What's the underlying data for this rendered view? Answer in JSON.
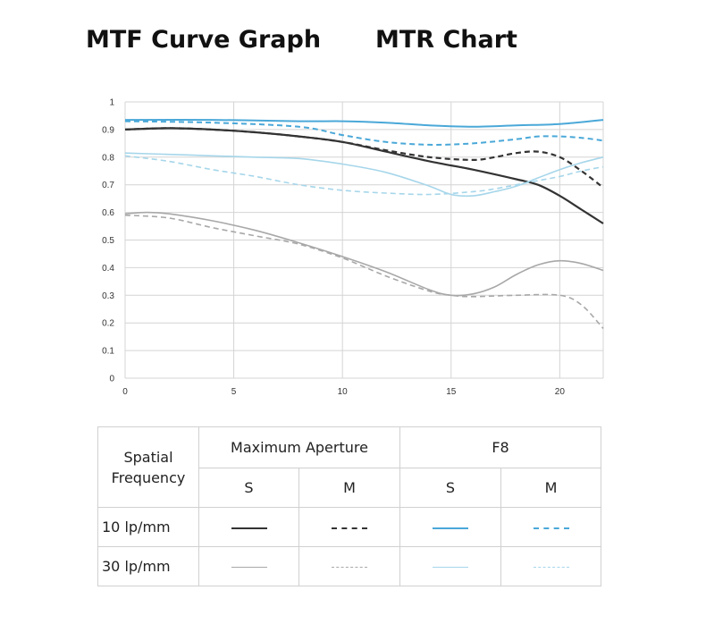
{
  "titles": {
    "left": "MTF Curve Graph",
    "right": "MTR Chart"
  },
  "colors": {
    "max_s_10": "#333333",
    "max_m_10": "#333333",
    "f8_s_10": "#4aa8d8",
    "f8_m_10": "#4aa8d8",
    "max_s_30": "#a8a8a8",
    "max_m_30": "#a8a8a8",
    "f8_s_30": "#a6d6ea",
    "f8_m_30": "#a6d6ea",
    "grid": "#d4d4d4"
  },
  "chart_data": {
    "type": "line",
    "xlim": [
      0,
      22
    ],
    "ylim": [
      0,
      1
    ],
    "x_ticks": [
      "0",
      "5",
      "10",
      "15",
      "20"
    ],
    "y_ticks": [
      "0",
      "0.1",
      "0.2",
      "0.3",
      "0.4",
      "0.5",
      "0.6",
      "0.7",
      "0.8",
      "0.9",
      "1"
    ],
    "grid": true,
    "series": [
      {
        "key": "max_s_10",
        "dash": "solid",
        "x": [
          0,
          2,
          4,
          6,
          8,
          10,
          12,
          14,
          16,
          18,
          19,
          20,
          21,
          22
        ],
        "y": [
          0.9,
          0.905,
          0.9,
          0.89,
          0.875,
          0.855,
          0.82,
          0.785,
          0.755,
          0.72,
          0.7,
          0.66,
          0.61,
          0.56
        ]
      },
      {
        "key": "max_m_10",
        "dash": "dashed",
        "x": [
          0,
          2,
          4,
          6,
          8,
          10,
          12,
          14,
          16,
          17,
          18,
          19,
          20,
          21,
          22
        ],
        "y": [
          0.9,
          0.905,
          0.9,
          0.89,
          0.875,
          0.855,
          0.825,
          0.8,
          0.79,
          0.8,
          0.815,
          0.82,
          0.8,
          0.75,
          0.69
        ]
      },
      {
        "key": "f8_s_10",
        "dash": "solid",
        "x": [
          0,
          4,
          8,
          10,
          12,
          14,
          16,
          18,
          20,
          22
        ],
        "y": [
          0.935,
          0.935,
          0.93,
          0.93,
          0.925,
          0.915,
          0.91,
          0.915,
          0.92,
          0.935
        ]
      },
      {
        "key": "f8_m_10",
        "dash": "dashed",
        "x": [
          0,
          4,
          8,
          10,
          12,
          14,
          16,
          18,
          19,
          20,
          21,
          22
        ],
        "y": [
          0.93,
          0.925,
          0.91,
          0.88,
          0.855,
          0.845,
          0.85,
          0.865,
          0.875,
          0.875,
          0.87,
          0.86
        ]
      },
      {
        "key": "max_s_30",
        "dash": "solid",
        "x": [
          0,
          1,
          2,
          4,
          6,
          8,
          10,
          12,
          14,
          15,
          16,
          17,
          18,
          19,
          20,
          21,
          22
        ],
        "y": [
          0.595,
          0.6,
          0.595,
          0.57,
          0.535,
          0.49,
          0.44,
          0.385,
          0.32,
          0.3,
          0.305,
          0.33,
          0.375,
          0.41,
          0.425,
          0.415,
          0.39
        ]
      },
      {
        "key": "max_m_30",
        "dash": "dashed",
        "x": [
          0,
          2,
          4,
          6,
          8,
          10,
          12,
          14,
          15,
          16,
          18,
          20,
          21,
          22
        ],
        "y": [
          0.59,
          0.58,
          0.545,
          0.515,
          0.485,
          0.435,
          0.37,
          0.315,
          0.3,
          0.295,
          0.3,
          0.3,
          0.265,
          0.18
        ]
      },
      {
        "key": "f8_s_30",
        "dash": "solid",
        "x": [
          0,
          2,
          4,
          6,
          8,
          10,
          12,
          14,
          15,
          16,
          17,
          18,
          19,
          20,
          21,
          22
        ],
        "y": [
          0.815,
          0.81,
          0.805,
          0.8,
          0.795,
          0.775,
          0.745,
          0.695,
          0.665,
          0.66,
          0.675,
          0.695,
          0.725,
          0.755,
          0.78,
          0.8
        ]
      },
      {
        "key": "f8_m_30",
        "dash": "dashed",
        "x": [
          0,
          2,
          4,
          6,
          8,
          10,
          12,
          14,
          16,
          17,
          18,
          19,
          20,
          21,
          22
        ],
        "y": [
          0.805,
          0.785,
          0.755,
          0.73,
          0.7,
          0.68,
          0.67,
          0.665,
          0.675,
          0.685,
          0.7,
          0.715,
          0.73,
          0.75,
          0.765
        ]
      }
    ]
  },
  "legend": {
    "header_spatial": "Spatial\nFrequency",
    "header_max": "Maximum Aperture",
    "header_f8": "F8",
    "sub_s": "S",
    "sub_m": "M",
    "row_10": "10 lp/mm",
    "row_30": "30 lp/mm"
  }
}
